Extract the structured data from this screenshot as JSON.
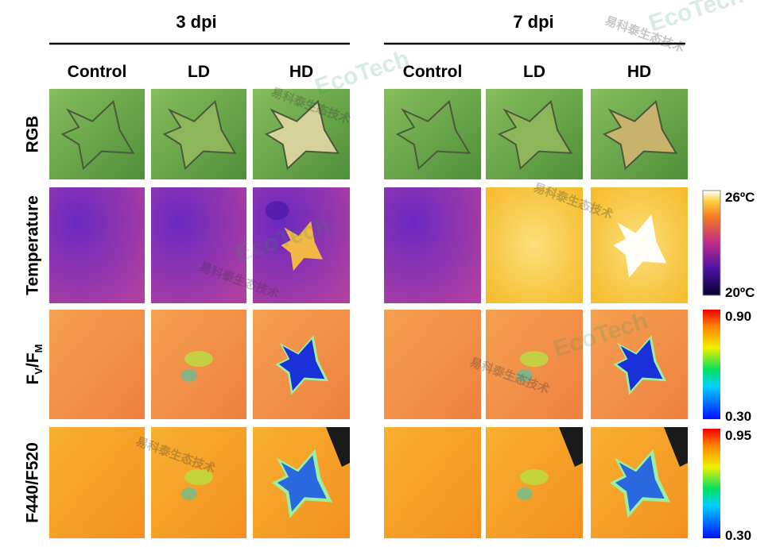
{
  "groups": [
    {
      "title": "3 dpi",
      "columns": [
        "Control",
        "LD",
        "HD"
      ]
    },
    {
      "title": "7 dpi",
      "columns": [
        "Control",
        "LD",
        "HD"
      ]
    }
  ],
  "rows": [
    {
      "label": "RGB"
    },
    {
      "label": "Temperature"
    },
    {
      "label_parts": [
        "F",
        "V",
        "/",
        "F",
        "M"
      ]
    },
    {
      "label": "F440/F520"
    }
  ],
  "scales": [
    {
      "max": "26ºC",
      "min": "20ºC"
    },
    {
      "max": "0.90",
      "min": "0.30"
    },
    {
      "max": "0.95",
      "min": "0.30"
    }
  ],
  "watermark": {
    "brand": "EcoTech",
    "name": "易科泰生态技术"
  }
}
